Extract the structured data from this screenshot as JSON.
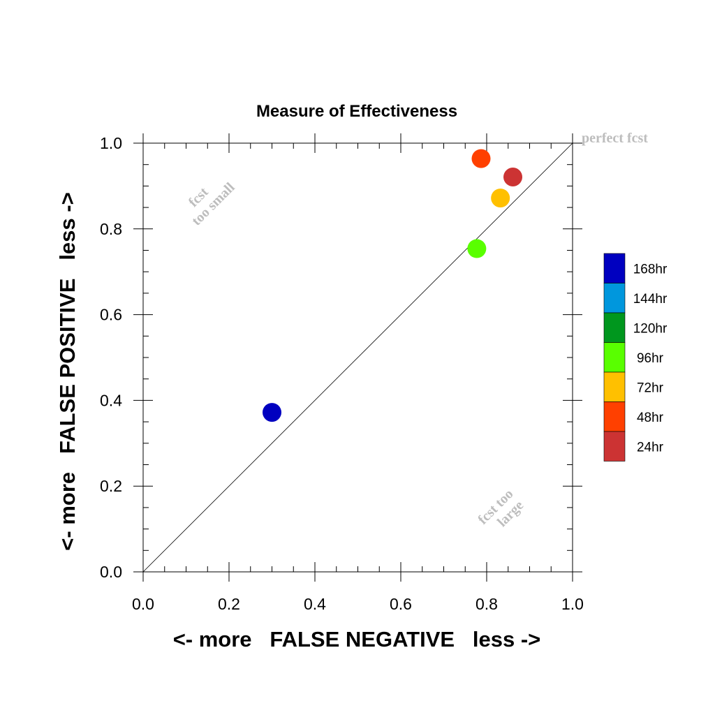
{
  "chart_data": {
    "type": "scatter",
    "title": "Measure of Effectiveness",
    "xlabel": "<- more   FALSE NEGATIVE   less ->",
    "ylabel": "<- more   FALSE POSITIVE   less ->",
    "xlim": [
      0,
      1
    ],
    "ylim": [
      0,
      1
    ],
    "xticks": [
      "0.0",
      "0.2",
      "0.4",
      "0.6",
      "0.8",
      "1.0"
    ],
    "yticks": [
      "0.0",
      "0.2",
      "0.4",
      "0.6",
      "0.8",
      "1.0"
    ],
    "tick_values": [
      0,
      0.2,
      0.4,
      0.6,
      0.8,
      1.0
    ],
    "grid": false,
    "diagonal": true,
    "annotations": {
      "perfect": "perfect fcst",
      "too_small_1": "fcst",
      "too_small_2": "too small",
      "too_large_1": "fcst too",
      "too_large_2": "large"
    },
    "legend_position": "right",
    "series": [
      {
        "name": "168hr",
        "color": "#0000c0",
        "x": 0.3,
        "y": 0.372
      },
      {
        "name": "144hr",
        "color": "#0097dd",
        "x": null,
        "y": null
      },
      {
        "name": "120hr",
        "color": "#00971e",
        "x": null,
        "y": null
      },
      {
        "name": "96hr",
        "color": "#59ff00",
        "x": 0.777,
        "y": 0.754
      },
      {
        "name": "72hr",
        "color": "#ffc000",
        "x": 0.832,
        "y": 0.872
      },
      {
        "name": "48hr",
        "color": "#ff4000",
        "x": 0.787,
        "y": 0.964
      },
      {
        "name": "24hr",
        "color": "#cc3333",
        "x": 0.861,
        "y": 0.921
      }
    ]
  }
}
